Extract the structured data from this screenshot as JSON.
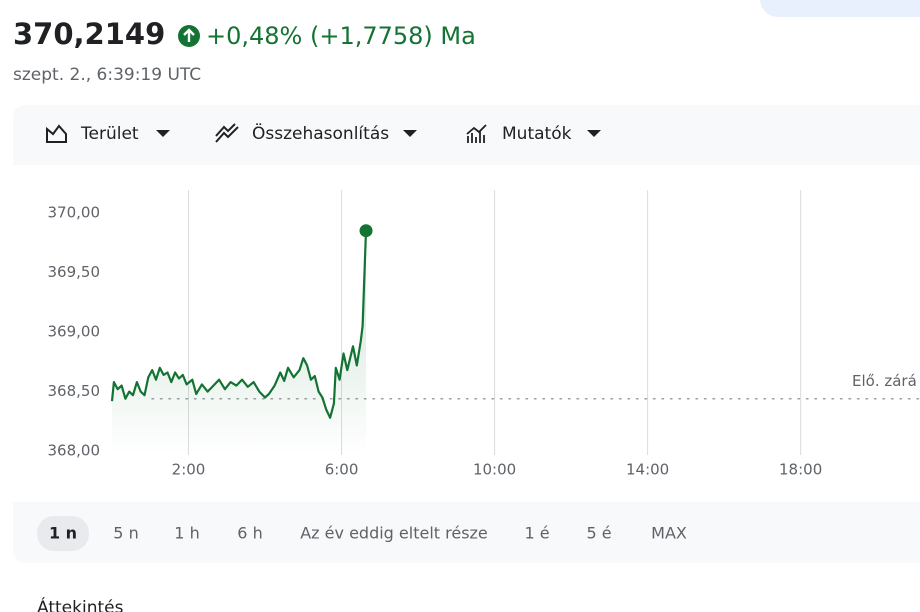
{
  "header": {
    "price": "370,2149",
    "change": "+0,48% (+1,7758) Ma",
    "timestamp": "szept. 2., 6:39:19 UTC"
  },
  "toolbar": [
    "Terület",
    "Összehasonlítás",
    "Mutatók"
  ],
  "chart_data": {
    "type": "line",
    "x": [
      0.0,
      0.05,
      0.15,
      0.25,
      0.35,
      0.45,
      0.55,
      0.65,
      0.75,
      0.85,
      0.95,
      1.05,
      1.15,
      1.25,
      1.35,
      1.45,
      1.55,
      1.65,
      1.75,
      1.85,
      1.95,
      2.1,
      2.2,
      2.35,
      2.5,
      2.65,
      2.8,
      2.95,
      3.1,
      3.25,
      3.4,
      3.55,
      3.7,
      3.85,
      4.0,
      4.1,
      4.25,
      4.4,
      4.5,
      4.6,
      4.75,
      4.9,
      5.0,
      5.1,
      5.2,
      5.3,
      5.4,
      5.5,
      5.6,
      5.7,
      5.8,
      5.85,
      5.95,
      6.05,
      6.15,
      6.3,
      6.4,
      6.5,
      6.55,
      6.6,
      6.64
    ],
    "series": [
      {
        "color": "#137333",
        "values": [
          368.42,
          368.58,
          368.52,
          368.55,
          368.44,
          368.5,
          368.47,
          368.58,
          368.5,
          368.47,
          368.62,
          368.68,
          368.6,
          368.7,
          368.64,
          368.66,
          368.58,
          368.66,
          368.61,
          368.64,
          368.56,
          368.6,
          368.48,
          368.56,
          368.5,
          368.55,
          368.6,
          368.52,
          368.58,
          368.55,
          368.6,
          368.54,
          368.58,
          368.5,
          368.45,
          368.48,
          368.55,
          368.66,
          368.59,
          368.7,
          368.62,
          368.68,
          368.78,
          368.72,
          368.6,
          368.63,
          368.5,
          368.45,
          368.35,
          368.28,
          368.4,
          368.7,
          368.6,
          368.82,
          368.68,
          368.88,
          368.72,
          368.92,
          369.05,
          369.5,
          369.85
        ]
      }
    ],
    "xlim": [
      0,
      21.12
    ],
    "xticks": [
      {
        "value": 2,
        "label": "2:00"
      },
      {
        "value": 6,
        "label": "6:00"
      },
      {
        "value": 10,
        "label": "10:00"
      },
      {
        "value": 14,
        "label": "14:00"
      },
      {
        "value": 18,
        "label": "18:00"
      }
    ],
    "ylim": [
      367.8,
      370.2
    ],
    "yticks": [
      {
        "value": 368,
        "label": "368,00"
      },
      {
        "value": 368.5,
        "label": "368,50"
      },
      {
        "value": 369,
        "label": "369,00"
      },
      {
        "value": 369.5,
        "label": "369,50"
      },
      {
        "value": 370,
        "label": "370,00"
      }
    ],
    "prev_close": {
      "value": 368.44,
      "label": "Elő. zárá"
    },
    "grid": true
  },
  "ranges": [
    "1 n",
    "5 n",
    "1 h",
    "6 h",
    "Az év eddig eltelt része",
    "1 é",
    "5 é",
    "MAX"
  ],
  "section_title": "Áttekintés"
}
